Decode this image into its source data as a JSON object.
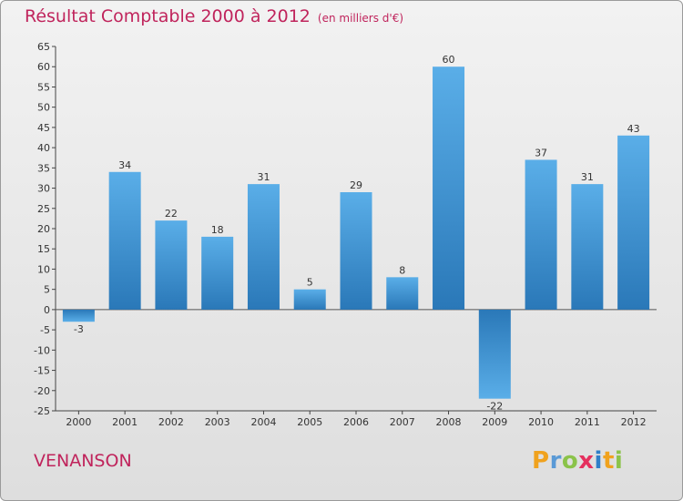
{
  "header": {
    "title": "Résultat Comptable 2000 à 2012",
    "subtitle": "(en milliers d'€)"
  },
  "commune": "VENANSON",
  "logo": {
    "letters": [
      "P",
      "r",
      "o",
      "x",
      "i",
      "t",
      "i"
    ],
    "colors": [
      "#f0a21e",
      "#5a9ad6",
      "#8bc34a",
      "#e5305e",
      "#2f7fc8",
      "#f0a21e",
      "#8bc34a"
    ]
  },
  "chart_data": {
    "type": "bar",
    "title": "Résultat Comptable 2000 à 2012",
    "subtitle": "(en milliers d'€)",
    "xlabel": "",
    "ylabel": "",
    "categories": [
      "2000",
      "2001",
      "2002",
      "2003",
      "2004",
      "2005",
      "2006",
      "2007",
      "2008",
      "2009",
      "2010",
      "2011",
      "2012"
    ],
    "values": [
      -3,
      34,
      22,
      18,
      31,
      5,
      29,
      8,
      60,
      -22,
      37,
      31,
      43
    ],
    "ylim": [
      -25,
      65
    ],
    "ytick_step": 5,
    "grid": false,
    "bar_color_light": "#5aaee8",
    "bar_color_dark": "#2a78b8"
  }
}
